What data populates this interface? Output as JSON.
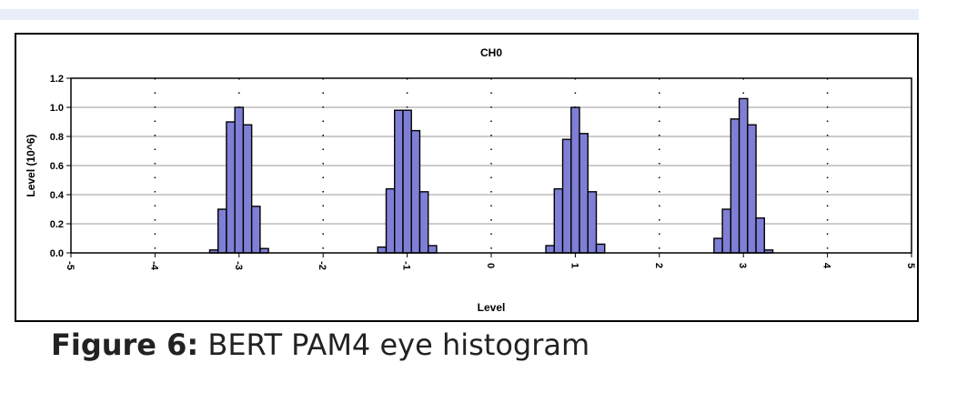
{
  "chart_data": {
    "type": "bar",
    "title": "CH0",
    "xlabel": "Level",
    "ylabel": "Level (10^6)",
    "xlim": [
      -5,
      5
    ],
    "ylim": [
      0,
      1.2
    ],
    "x_ticks": [
      "-5",
      "-4",
      "-3",
      "-2",
      "-1",
      "0",
      "1",
      "2",
      "3",
      "4",
      "5"
    ],
    "y_ticks": [
      "0.0",
      "0.2",
      "0.4",
      "0.6",
      "0.8",
      "1.0",
      "1.2"
    ],
    "grid": "horizontal gridlines, dotted vertical lines at integer levels",
    "bin_width": 0.1,
    "bar_color": "#7f7fd6",
    "series": [
      {
        "center": -3,
        "x": [
          -3.3,
          -3.2,
          -3.1,
          -3.0,
          -2.9,
          -2.8,
          -2.7
        ],
        "values": [
          0.02,
          0.3,
          0.9,
          1.0,
          0.88,
          0.32,
          0.03
        ]
      },
      {
        "center": -1,
        "x": [
          -1.3,
          -1.2,
          -1.1,
          -1.0,
          -0.9,
          -0.8,
          -0.7
        ],
        "values": [
          0.04,
          0.44,
          0.98,
          0.98,
          0.84,
          0.42,
          0.05
        ]
      },
      {
        "center": 1,
        "x": [
          0.7,
          0.8,
          0.9,
          1.0,
          1.1,
          1.2,
          1.3
        ],
        "values": [
          0.05,
          0.44,
          0.78,
          1.0,
          0.82,
          0.42,
          0.06
        ]
      },
      {
        "center": 3,
        "x": [
          2.7,
          2.8,
          2.9,
          3.0,
          3.1,
          3.2,
          3.3
        ],
        "values": [
          0.1,
          0.3,
          0.92,
          1.06,
          0.88,
          0.24,
          0.02
        ]
      }
    ]
  },
  "caption": {
    "label": "Figure 6:",
    "text": " BERT PAM4 eye histogram"
  }
}
